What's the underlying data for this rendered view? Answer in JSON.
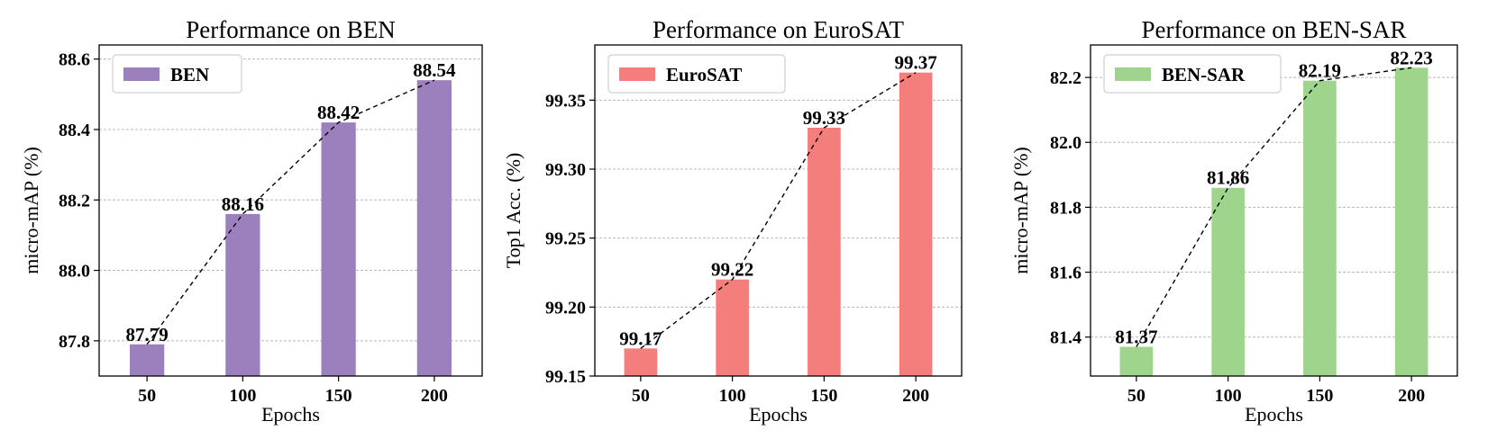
{
  "chart_data": [
    {
      "type": "bar",
      "title": "Performance on BEN",
      "xlabel": "Epochs",
      "ylabel": "micro-mAP (%)",
      "categories": [
        "50",
        "100",
        "150",
        "200"
      ],
      "series": [
        {
          "name": "BEN",
          "values": [
            87.79,
            88.16,
            88.42,
            88.54
          ]
        }
      ],
      "value_labels": [
        "87.79",
        "88.16",
        "88.42",
        "88.54"
      ],
      "ylim": [
        87.7,
        88.64
      ],
      "yticks": [
        87.8,
        88.0,
        88.2,
        88.4,
        88.6
      ],
      "ytick_labels": [
        "87.8",
        "88.0",
        "88.2",
        "88.4",
        "88.6"
      ],
      "color": "#9b80bd",
      "trend_line": "dashed",
      "grid": "horizontal",
      "legend": "top-left"
    },
    {
      "type": "bar",
      "title": "Performance on EuroSAT",
      "xlabel": "Epochs",
      "ylabel": "Top1 Acc. (%)",
      "categories": [
        "50",
        "100",
        "150",
        "200"
      ],
      "series": [
        {
          "name": "EuroSAT",
          "values": [
            99.17,
            99.22,
            99.33,
            99.37
          ]
        }
      ],
      "value_labels": [
        "99.17",
        "99.22",
        "99.33",
        "99.37"
      ],
      "ylim": [
        99.15,
        99.39
      ],
      "yticks": [
        99.15,
        99.2,
        99.25,
        99.3,
        99.35
      ],
      "ytick_labels": [
        "99.15",
        "99.20",
        "99.25",
        "99.30",
        "99.35"
      ],
      "color": "#f47e7c",
      "trend_line": "dashed",
      "grid": "horizontal",
      "legend": "top-left"
    },
    {
      "type": "bar",
      "title": "Performance on BEN-SAR",
      "xlabel": "Epochs",
      "ylabel": "micro-mAP (%)",
      "categories": [
        "50",
        "100",
        "150",
        "200"
      ],
      "series": [
        {
          "name": "BEN-SAR",
          "values": [
            81.37,
            81.86,
            82.19,
            82.23
          ]
        }
      ],
      "value_labels": [
        "81.37",
        "81.86",
        "82.19",
        "82.23"
      ],
      "ylim": [
        81.28,
        82.3
      ],
      "yticks": [
        81.4,
        81.6,
        81.8,
        82.0,
        82.2
      ],
      "ytick_labels": [
        "81.4",
        "81.6",
        "81.8",
        "82.0",
        "82.2"
      ],
      "color": "#9ed48c",
      "trend_line": "dashed",
      "grid": "horizontal",
      "legend": "top-left"
    }
  ]
}
